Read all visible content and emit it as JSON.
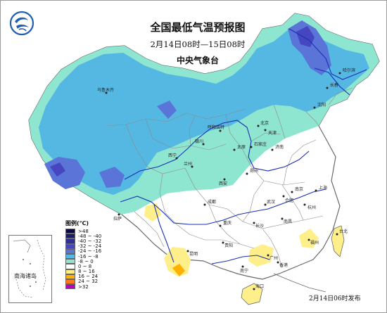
{
  "map": {
    "title": "全国最低气温预报图",
    "subtitle": "2月14日08时—15日08时",
    "agency": "中央气象台",
    "issue_time": "2月14日06时发布",
    "inset_label": "南海诸岛"
  },
  "legend": {
    "title": "图例(℃)",
    "items": [
      {
        "label": ">48",
        "color": "#0a0a3c"
      },
      {
        "label": "-48 ~ -40",
        "color": "#1b1b6b"
      },
      {
        "label": "-40 ~ -32",
        "color": "#2e2e98"
      },
      {
        "label": "-32 ~ -24",
        "color": "#4646c0"
      },
      {
        "label": "-24 ~ -16",
        "color": "#5a74d8"
      },
      {
        "label": "-16 ~ -8",
        "color": "#55b8e2"
      },
      {
        "label": "-8 ~ 0",
        "color": "#8ee6d0"
      },
      {
        "label": "0 ~ 8",
        "color": "#ffffff"
      },
      {
        "label": "8 ~ 16",
        "color": "#ffef8a"
      },
      {
        "label": "16 ~ 24",
        "color": "#ffb000"
      },
      {
        "label": "24 ~ 32",
        "color": "#ff7a1a"
      },
      {
        "label": ">32",
        "color": "#c000c0"
      }
    ]
  },
  "cities": [
    {
      "id": "wulumuqi",
      "label": "乌鲁木齐"
    },
    {
      "id": "haerbin",
      "label": "哈尔滨"
    },
    {
      "id": "changchun",
      "label": "长春"
    },
    {
      "id": "shenyang",
      "label": "沈阳"
    },
    {
      "id": "huhehaote",
      "label": "呼和浩特"
    },
    {
      "id": "beijing",
      "label": "北京"
    },
    {
      "id": "tianjin",
      "label": "天津"
    },
    {
      "id": "shijiazhuang",
      "label": "石家庄"
    },
    {
      "id": "taiyuan",
      "label": "太原"
    },
    {
      "id": "jinan",
      "label": "济南"
    },
    {
      "id": "yinchuan",
      "label": "银川"
    },
    {
      "id": "lanzhou",
      "label": "兰州"
    },
    {
      "id": "xining",
      "label": "西宁"
    },
    {
      "id": "xian",
      "label": "西安"
    },
    {
      "id": "zhengzhou",
      "label": "郑州"
    },
    {
      "id": "nanjing",
      "label": "南京"
    },
    {
      "id": "shanghai",
      "label": "上海"
    },
    {
      "id": "hefei",
      "label": "合肥"
    },
    {
      "id": "hangzhou",
      "label": "杭州"
    },
    {
      "id": "wuhan",
      "label": "武汉"
    },
    {
      "id": "lasa",
      "label": "拉萨"
    },
    {
      "id": "chengdu",
      "label": "成都"
    },
    {
      "id": "chongqing",
      "label": "重庆"
    },
    {
      "id": "changsha",
      "label": "长沙"
    },
    {
      "id": "nanchang",
      "label": "南昌"
    },
    {
      "id": "guiyang",
      "label": "贵阳"
    },
    {
      "id": "kunming",
      "label": "昆明"
    },
    {
      "id": "fuzhou",
      "label": "福州"
    },
    {
      "id": "guangzhou",
      "label": "广州"
    },
    {
      "id": "nanning",
      "label": "南宁"
    },
    {
      "id": "haikou",
      "label": "海口"
    },
    {
      "id": "taibei",
      "label": "台北"
    },
    {
      "id": "xianggang",
      "label": "香港"
    }
  ]
}
